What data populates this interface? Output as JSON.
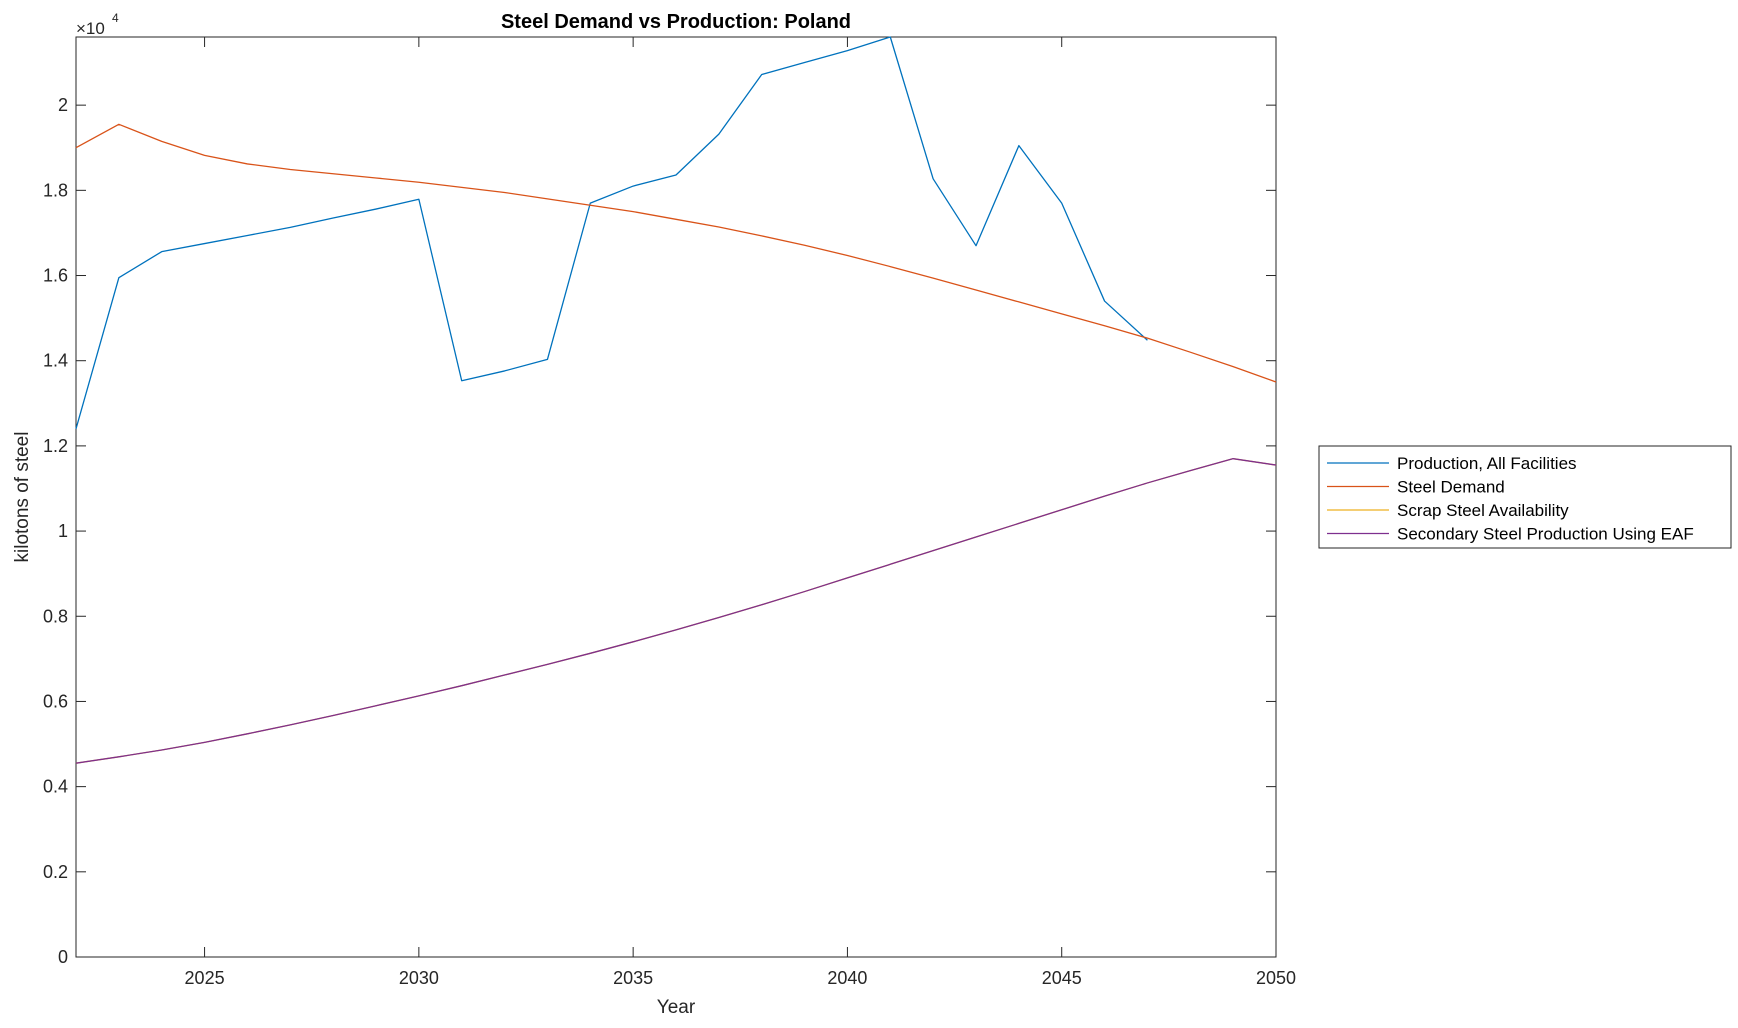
{
  "chart_data": {
    "type": "line",
    "title": "Steel Demand vs Production: Poland",
    "xlabel": "Year",
    "ylabel": "kilotons of steel",
    "exponent_label": "×10",
    "exponent_power": "4",
    "xlim": [
      2022,
      2050
    ],
    "ylim": [
      0,
      21600
    ],
    "x_ticks": [
      2025,
      2030,
      2035,
      2040,
      2045,
      2050
    ],
    "y_ticks": [
      0,
      2000,
      4000,
      6000,
      8000,
      10000,
      12000,
      14000,
      16000,
      18000,
      20000
    ],
    "y_tick_labels": [
      "0",
      "0.2",
      "0.4",
      "0.6",
      "0.8",
      "1",
      "1.2",
      "1.4",
      "1.6",
      "1.8",
      "2"
    ],
    "grid": false,
    "legend_position": "outside-right",
    "series": [
      {
        "name": "Production, All Facilities",
        "color": "#0072BD",
        "x": [
          2022,
          2023,
          2024,
          2025,
          2026,
          2027,
          2028,
          2029,
          2030,
          2031,
          2032,
          2033,
          2034,
          2035,
          2036,
          2037,
          2038,
          2039,
          2040,
          2041,
          2042,
          2043,
          2044,
          2045,
          2046,
          2047
        ],
        "values": [
          12400,
          15950,
          16560,
          16750,
          16940,
          17130,
          17350,
          17560,
          17790,
          13530,
          13760,
          14030,
          17700,
          18100,
          18360,
          19320,
          20720,
          21000,
          21280,
          21600,
          18270,
          16700,
          19050,
          17700,
          15400,
          14480
        ]
      },
      {
        "name": "Steel Demand",
        "color": "#D95319",
        "x": [
          2022,
          2023,
          2024,
          2025,
          2026,
          2027,
          2028,
          2029,
          2030,
          2031,
          2032,
          2033,
          2034,
          2035,
          2036,
          2037,
          2038,
          2039,
          2040,
          2041,
          2042,
          2043,
          2044,
          2045,
          2046,
          2047,
          2048,
          2049,
          2050
        ],
        "values": [
          19000,
          19550,
          19150,
          18820,
          18620,
          18490,
          18390,
          18290,
          18190,
          18070,
          17950,
          17800,
          17650,
          17500,
          17320,
          17140,
          16930,
          16710,
          16470,
          16210,
          15940,
          15660,
          15380,
          15100,
          14820,
          14530,
          14200,
          13860,
          13500
        ]
      },
      {
        "name": "Scrap Steel Availability",
        "color": "#EDB120",
        "x": [
          2022,
          2023,
          2024,
          2025,
          2026,
          2027,
          2028,
          2029,
          2030,
          2031,
          2032,
          2033,
          2034,
          2035,
          2036,
          2037,
          2038,
          2039,
          2040,
          2041,
          2042,
          2043,
          2044,
          2045,
          2046,
          2047,
          2048,
          2049,
          2050
        ],
        "values": [
          4550,
          4700,
          4860,
          5040,
          5240,
          5450,
          5670,
          5900,
          6130,
          6370,
          6620,
          6870,
          7130,
          7400,
          7680,
          7970,
          8270,
          8580,
          8900,
          9220,
          9540,
          9860,
          10180,
          10500,
          10820,
          11130,
          11420,
          11700,
          11550
        ]
      },
      {
        "name": "Secondary Steel Production Using EAF",
        "color": "#7E2F8E",
        "x": [
          2022,
          2023,
          2024,
          2025,
          2026,
          2027,
          2028,
          2029,
          2030,
          2031,
          2032,
          2033,
          2034,
          2035,
          2036,
          2037,
          2038,
          2039,
          2040,
          2041,
          2042,
          2043,
          2044,
          2045,
          2046,
          2047,
          2048,
          2049,
          2050
        ],
        "values": [
          4550,
          4700,
          4860,
          5040,
          5240,
          5450,
          5670,
          5900,
          6130,
          6370,
          6620,
          6870,
          7130,
          7400,
          7680,
          7970,
          8270,
          8580,
          8900,
          9220,
          9540,
          9860,
          10180,
          10500,
          10820,
          11130,
          11420,
          11700,
          11550
        ]
      }
    ]
  }
}
